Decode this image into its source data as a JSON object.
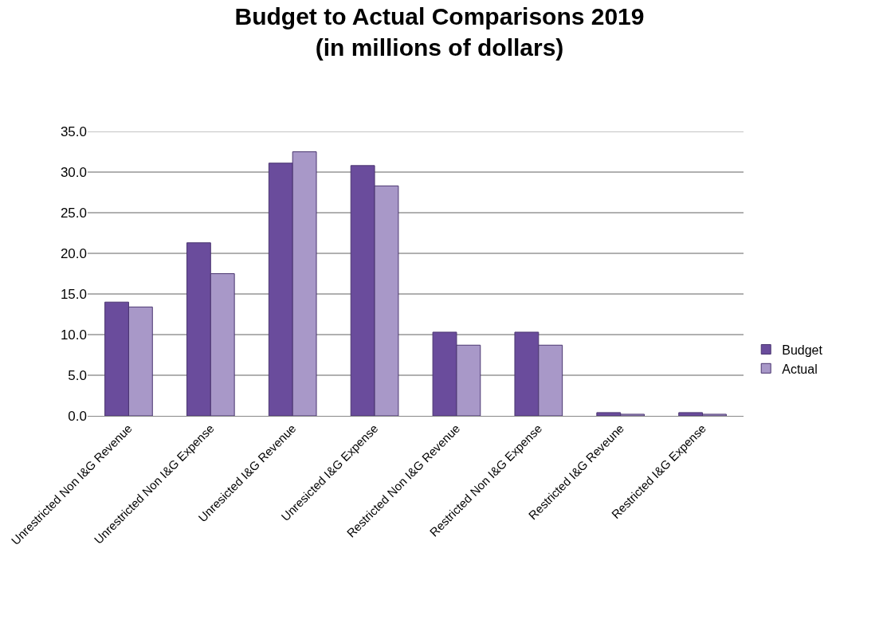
{
  "chart_data": {
    "type": "bar",
    "title": "Budget to Actual Comparisons 2019\n(in millions of dollars)",
    "categories": [
      "Unrestricted Non I&G Revenue",
      "Unrestricted Non I&G Expense",
      "Unresicted I&G Revenue",
      "Unresicted I&G Expense",
      "Restricted Non I&G Revenue",
      "Restricted Non I&G Expense",
      "Restricted I&G Reveune",
      "Restricted I&G Expense"
    ],
    "series": [
      {
        "name": "Budget",
        "color": "#6a4c9c",
        "values": [
          14.0,
          21.3,
          31.1,
          30.8,
          10.3,
          10.3,
          0.4,
          0.4
        ]
      },
      {
        "name": "Actual",
        "color": "#a898c8",
        "values": [
          13.4,
          17.5,
          32.5,
          28.3,
          8.7,
          8.7,
          0.2,
          0.2
        ]
      }
    ],
    "ylim": [
      0,
      35
    ],
    "yticks": [
      {
        "value": 0,
        "label": "0.0"
      },
      {
        "value": 5,
        "label": "5.0"
      },
      {
        "value": 10,
        "label": "10.0"
      },
      {
        "value": 15,
        "label": "15.0"
      },
      {
        "value": 20,
        "label": "20.0"
      },
      {
        "value": 25,
        "label": "25.0"
      },
      {
        "value": 30,
        "label": "30.0"
      },
      {
        "value": 35,
        "label": "35.0"
      }
    ],
    "grid": "y",
    "legend": "right"
  }
}
